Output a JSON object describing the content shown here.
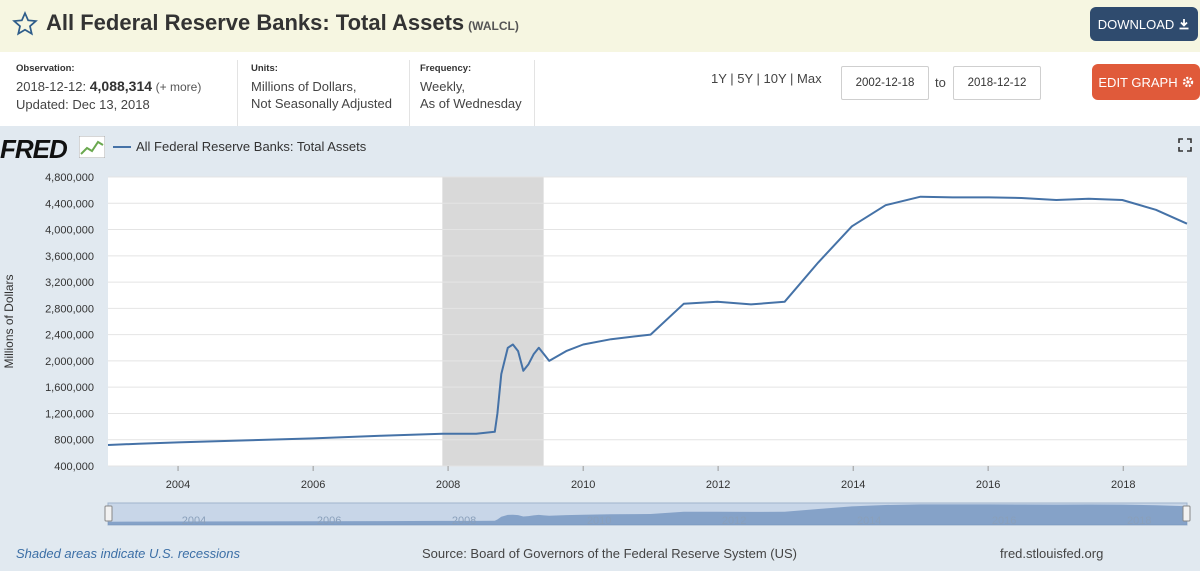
{
  "header": {
    "title": "All Federal Reserve Banks: Total Assets",
    "series_code": "(WALCL)",
    "download_label": "DOWNLOAD"
  },
  "meta": {
    "observation_label": "Observation:",
    "observation_date": "2018-12-12:",
    "observation_value": "4,088,314",
    "observation_more": "(+ more)",
    "updated": "Updated: Dec 13, 2018",
    "units_label": "Units:",
    "units_line1": "Millions of Dollars,",
    "units_line2": "Not Seasonally Adjusted",
    "frequency_label": "Frequency:",
    "frequency_line1": "Weekly,",
    "frequency_line2": "As of Wednesday"
  },
  "controls": {
    "ranges": "1Y | 5Y | 10Y | Max",
    "start_date": "2002-12-18",
    "to_label": "to",
    "end_date": "2018-12-12",
    "edit_label": "EDIT GRAPH"
  },
  "panel": {
    "logo": "FRED",
    "legend_label": "All Federal Reserve Banks: Total Assets",
    "footer_left": "Shaded areas indicate U.S. recessions",
    "footer_mid": "Source: Board of Governors of the Federal Reserve System (US)",
    "footer_right": "fred.stlouisfed.org"
  },
  "colors": {
    "series": "#4572a7",
    "recession": "#d9d9d9",
    "download_button": "#2f4b6e",
    "edit_button": "#e05a3a"
  },
  "icons": {
    "star": "star-icon",
    "download": "download-icon",
    "gear": "gear-icon",
    "expand": "expand-icon"
  },
  "chart_data": {
    "type": "line",
    "ylabel": "Millions of Dollars",
    "ylim": [
      400000,
      4800000
    ],
    "xlim": [
      "2002-12-18",
      "2018-12-12"
    ],
    "grid": true,
    "legend_position": "top-left",
    "y_ticks": [
      "400,000",
      "800,000",
      "1,200,000",
      "1,600,000",
      "2,000,000",
      "2,400,000",
      "2,800,000",
      "3,200,000",
      "3,600,000",
      "4,000,000",
      "4,400,000",
      "4,800,000"
    ],
    "x_ticks": [
      "2004",
      "2006",
      "2008",
      "2010",
      "2012",
      "2014",
      "2016",
      "2018"
    ],
    "recessions": [
      {
        "start": "2007-12-01",
        "end": "2009-06-01"
      }
    ],
    "series": [
      {
        "name": "All Federal Reserve Banks: Total Assets",
        "points": [
          [
            "2002-12-18",
            720000
          ],
          [
            "2003-06-01",
            740000
          ],
          [
            "2004-01-01",
            760000
          ],
          [
            "2005-01-01",
            790000
          ],
          [
            "2006-01-01",
            820000
          ],
          [
            "2007-01-01",
            860000
          ],
          [
            "2007-12-01",
            890000
          ],
          [
            "2008-06-01",
            890000
          ],
          [
            "2008-09-10",
            920000
          ],
          [
            "2008-09-24",
            1200000
          ],
          [
            "2008-10-15",
            1800000
          ],
          [
            "2008-11-19",
            2200000
          ],
          [
            "2008-12-17",
            2250000
          ],
          [
            "2009-01-14",
            2150000
          ],
          [
            "2009-02-11",
            1850000
          ],
          [
            "2009-03-11",
            1950000
          ],
          [
            "2009-04-08",
            2100000
          ],
          [
            "2009-05-06",
            2200000
          ],
          [
            "2009-06-03",
            2100000
          ],
          [
            "2009-07-01",
            2000000
          ],
          [
            "2009-10-01",
            2150000
          ],
          [
            "2010-01-01",
            2250000
          ],
          [
            "2010-06-01",
            2330000
          ],
          [
            "2011-01-01",
            2400000
          ],
          [
            "2011-06-29",
            2870000
          ],
          [
            "2011-12-28",
            2900000
          ],
          [
            "2012-06-27",
            2860000
          ],
          [
            "2012-12-26",
            2900000
          ],
          [
            "2013-06-26",
            3500000
          ],
          [
            "2013-12-25",
            4050000
          ],
          [
            "2014-06-25",
            4370000
          ],
          [
            "2014-12-31",
            4500000
          ],
          [
            "2015-06-24",
            4490000
          ],
          [
            "2016-01-06",
            4490000
          ],
          [
            "2016-06-29",
            4480000
          ],
          [
            "2017-01-04",
            4450000
          ],
          [
            "2017-06-28",
            4470000
          ],
          [
            "2017-12-27",
            4450000
          ],
          [
            "2018-06-27",
            4300000
          ],
          [
            "2018-12-12",
            4088314
          ]
        ]
      }
    ]
  }
}
